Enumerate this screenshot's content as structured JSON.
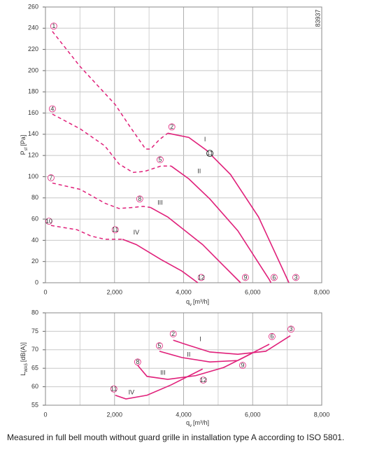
{
  "chart_data": [
    {
      "type": "line",
      "side_label": "83937",
      "xlabel": {
        "main": "q",
        "sub": "v",
        "unit": "[m³/h]"
      },
      "ylabel": {
        "main": "P",
        "sub": "sf",
        "unit": "[Pa]"
      },
      "xlim": [
        0,
        8000
      ],
      "ylim": [
        0,
        260
      ],
      "xticks": [
        {
          "value": 0,
          "label": "0"
        },
        {
          "value": 2000,
          "label": "2,000"
        },
        {
          "value": 4000,
          "label": "4,000"
        },
        {
          "value": 6000,
          "label": "6,000"
        },
        {
          "value": 8000,
          "label": "8,000"
        }
      ],
      "x_minor_ticks": [
        1000,
        3000,
        5000,
        7000
      ],
      "yticks": [
        0,
        20,
        40,
        60,
        80,
        100,
        120,
        140,
        160,
        180,
        200,
        220,
        240,
        260
      ],
      "grid": true,
      "series": [
        {
          "name": "I",
          "color": "#e0207a",
          "label_at": [
            4620,
            135
          ],
          "dashed_x": [
            200,
            1000,
            2020,
            2430,
            2900,
            3040,
            3300,
            3540
          ],
          "dashed_values": [
            237,
            204,
            168,
            148,
            126,
            126,
            135,
            141
          ],
          "x": [
            3540,
            4150,
            4660,
            5360,
            6170,
            7050
          ],
          "values": [
            141,
            137,
            125,
            102,
            62,
            0
          ]
        },
        {
          "name": "II",
          "color": "#e0207a",
          "label_at": [
            4450,
            105
          ],
          "dashed_x": [
            200,
            1010,
            1720,
            2130,
            2530,
            2870,
            3340,
            3640
          ],
          "dashed_values": [
            159,
            145,
            129,
            112,
            104,
            105,
            110,
            110
          ],
          "x": [
            3640,
            4150,
            4760,
            5570,
            6480,
            6530
          ],
          "values": [
            110,
            98,
            79,
            49,
            3,
            0
          ]
        },
        {
          "name": "III",
          "color": "#e0207a",
          "label_at": [
            3320,
            75
          ],
          "dashed_x": [
            200,
            1010,
            1720,
            2130,
            2530,
            2830,
            3040
          ],
          "dashed_values": [
            94,
            88,
            75,
            70,
            71,
            72,
            71
          ],
          "x": [
            3040,
            3540,
            4550,
            5160,
            5650
          ],
          "values": [
            71,
            62,
            36,
            16,
            0
          ]
        },
        {
          "name": "IV",
          "color": "#e0207a",
          "label_at": [
            2630,
            47
          ],
          "dashed_x": [
            160,
            910,
            1320,
            1720,
            1980,
            2230
          ],
          "dashed_values": [
            54,
            50,
            44,
            41,
            41,
            41
          ],
          "x": [
            2230,
            2630,
            3340,
            3950,
            4410
          ],
          "values": [
            41,
            36,
            22,
            11,
            0
          ]
        }
      ],
      "markers": [
        {
          "label": "1",
          "x": 240,
          "y": 242
        },
        {
          "label": "2",
          "x": 3660,
          "y": 147
        },
        {
          "label": "11",
          "x": 4760,
          "y": 122,
          "color": "#000000"
        },
        {
          "label": "3",
          "x": 7250,
          "y": 5
        },
        {
          "label": "4",
          "x": 200,
          "y": 164
        },
        {
          "label": "5",
          "x": 3320,
          "y": 116
        },
        {
          "label": "6",
          "x": 6620,
          "y": 5
        },
        {
          "label": "7",
          "x": 160,
          "y": 99
        },
        {
          "label": "8",
          "x": 2730,
          "y": 79
        },
        {
          "label": "9",
          "x": 5790,
          "y": 5
        },
        {
          "label": "10",
          "x": 100,
          "y": 58
        },
        {
          "label": "11",
          "x": 2020,
          "y": 50
        },
        {
          "label": "12",
          "x": 4510,
          "y": 5
        }
      ]
    },
    {
      "type": "line",
      "xlabel": {
        "main": "q",
        "sub": "v",
        "unit": "[m³/h]"
      },
      "ylabel": {
        "main": "L",
        "sub": "WA5",
        "unit": "[dB(A)]"
      },
      "xlim": [
        0,
        8000
      ],
      "ylim": [
        55,
        80
      ],
      "xticks": [
        {
          "value": 0,
          "label": "0"
        },
        {
          "value": 2000,
          "label": "2,000"
        },
        {
          "value": 4000,
          "label": "4,000"
        },
        {
          "value": 6000,
          "label": "6,000"
        },
        {
          "value": 8000,
          "label": "8,000"
        }
      ],
      "x_minor_ticks": [
        1000,
        3000,
        5000,
        7000
      ],
      "yticks": [
        55,
        60,
        65,
        70,
        75,
        80
      ],
      "grid": true,
      "series": [
        {
          "name": "I",
          "color": "#e0207a",
          "label_at": [
            4490,
            72.8
          ],
          "x": [
            3700,
            4050,
            4760,
            5570,
            6380,
            7090
          ],
          "values": [
            72.6,
            71.5,
            69.4,
            68.8,
            69.6,
            73.8
          ]
        },
        {
          "name": "II",
          "color": "#e0207a",
          "label_at": [
            4150,
            68.6
          ],
          "x": [
            3300,
            3950,
            4760,
            5570,
            6480
          ],
          "values": [
            69.6,
            67.9,
            66.7,
            67.1,
            71.5
          ]
        },
        {
          "name": "III",
          "color": "#e0207a",
          "label_at": [
            3400,
            63.7
          ],
          "x": [
            2670,
            2940,
            3540,
            4350,
            5160,
            5970
          ],
          "values": [
            65.8,
            62.8,
            62.0,
            63.0,
            65.2,
            69.0
          ]
        },
        {
          "name": "IV",
          "color": "#e0207a",
          "label_at": [
            2490,
            58.4
          ],
          "x": [
            2020,
            2330,
            2940,
            3640,
            4550
          ],
          "values": [
            57.7,
            56.7,
            57.7,
            60.5,
            64.8
          ]
        }
      ],
      "markers": [
        {
          "label": "2",
          "x": 3700,
          "y": 74.3
        },
        {
          "label": "3",
          "x": 7110,
          "y": 75.6
        },
        {
          "label": "5",
          "x": 3300,
          "y": 71.1
        },
        {
          "label": "6",
          "x": 6560,
          "y": 73.6
        },
        {
          "label": "8",
          "x": 2670,
          "y": 66.7
        },
        {
          "label": "9",
          "x": 5710,
          "y": 65.8
        },
        {
          "label": "11",
          "x": 1980,
          "y": 59.4
        },
        {
          "label": "12",
          "x": 4570,
          "y": 61.8
        }
      ]
    }
  ],
  "caption": "Measured in full bell mouth without guard grille in installation type A according to ISO 5801."
}
